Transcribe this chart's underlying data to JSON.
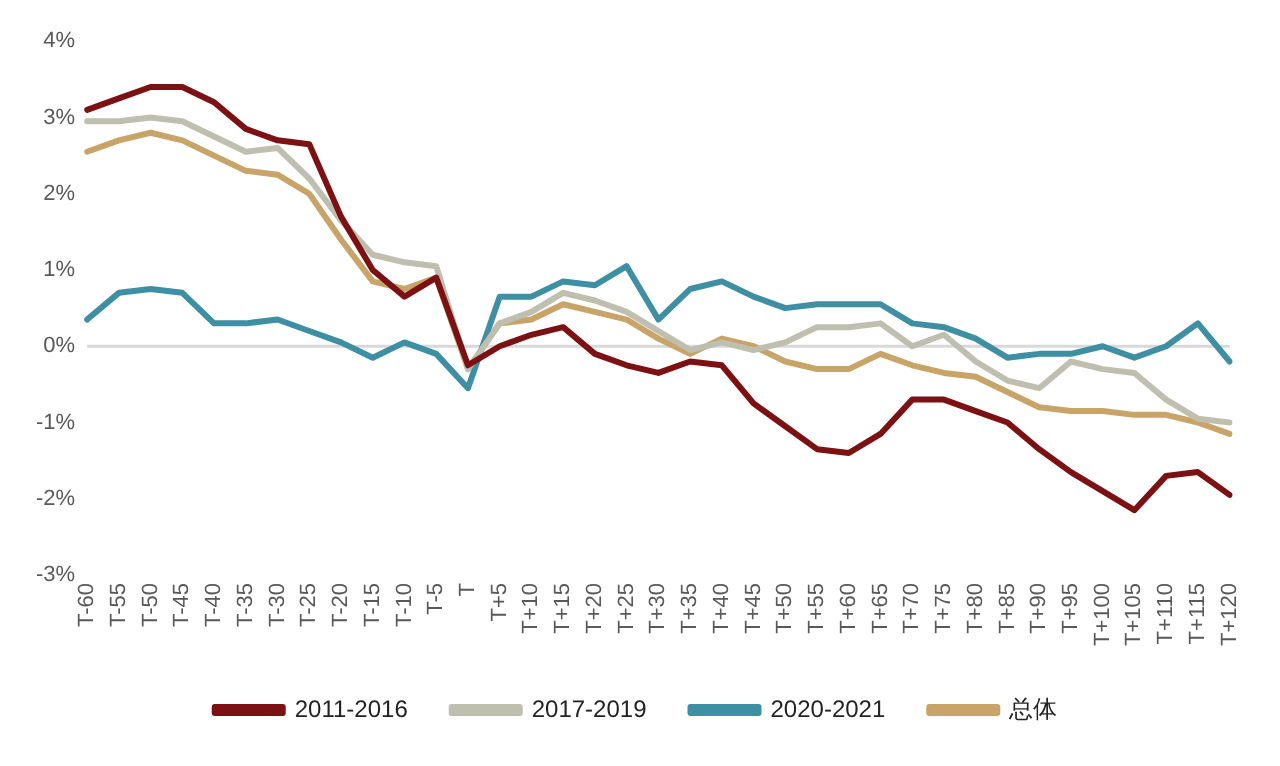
{
  "chart_data": {
    "type": "line",
    "categories": [
      "T-60",
      "T-55",
      "T-50",
      "T-45",
      "T-40",
      "T-35",
      "T-30",
      "T-25",
      "T-20",
      "T-15",
      "T-10",
      "T-5",
      "T",
      "T+5",
      "T+10",
      "T+15",
      "T+20",
      "T+25",
      "T+30",
      "T+35",
      "T+40",
      "T+45",
      "T+50",
      "T+55",
      "T+60",
      "T+65",
      "T+70",
      "T+75",
      "T+80",
      "T+85",
      "T+90",
      "T+95",
      "T+100",
      "T+105",
      "T+110",
      "T+115",
      "T+120"
    ],
    "series": [
      {
        "name": "2011-2016",
        "color": "#7b1113",
        "values": [
          3.1,
          3.25,
          3.4,
          3.4,
          3.2,
          2.85,
          2.7,
          2.65,
          1.7,
          1.0,
          0.65,
          0.9,
          -0.25,
          0.0,
          0.15,
          0.25,
          -0.1,
          -0.25,
          -0.35,
          -0.2,
          -0.25,
          -0.75,
          -1.05,
          -1.35,
          -1.4,
          -1.15,
          -0.7,
          -0.7,
          -0.85,
          -1.0,
          -1.35,
          -1.65,
          -1.9,
          -2.15,
          -1.7,
          -1.65,
          -1.95
        ]
      },
      {
        "name": "2017-2019",
        "color": "#bfbfb0",
        "values": [
          2.95,
          2.95,
          3.0,
          2.95,
          2.75,
          2.55,
          2.6,
          2.2,
          1.65,
          1.2,
          1.1,
          1.05,
          -0.3,
          0.3,
          0.45,
          0.7,
          0.6,
          0.45,
          0.2,
          -0.05,
          0.05,
          -0.05,
          0.05,
          0.25,
          0.25,
          0.3,
          0.0,
          0.15,
          -0.2,
          -0.45,
          -0.55,
          -0.2,
          -0.3,
          -0.35,
          -0.7,
          -0.95,
          -1.0
        ]
      },
      {
        "name": "2020-2021",
        "color": "#3e8fa3",
        "values": [
          0.35,
          0.7,
          0.75,
          0.7,
          0.3,
          0.3,
          0.35,
          0.2,
          0.05,
          -0.15,
          0.05,
          -0.1,
          -0.55,
          0.65,
          0.65,
          0.85,
          0.8,
          1.05,
          0.35,
          0.75,
          0.85,
          0.65,
          0.5,
          0.55,
          0.55,
          0.55,
          0.3,
          0.25,
          0.1,
          -0.15,
          -0.1,
          -0.1,
          0.0,
          -0.15,
          0.0,
          0.3,
          -0.2
        ]
      },
      {
        "name": "总体",
        "color": "#c8a468",
        "values": [
          2.55,
          2.7,
          2.8,
          2.7,
          2.5,
          2.3,
          2.25,
          2.0,
          1.4,
          0.85,
          0.75,
          0.9,
          -0.3,
          0.3,
          0.35,
          0.55,
          0.45,
          0.35,
          0.1,
          -0.1,
          0.1,
          0.0,
          -0.2,
          -0.3,
          -0.3,
          -0.1,
          -0.25,
          -0.35,
          -0.4,
          -0.6,
          -0.8,
          -0.85,
          -0.85,
          -0.9,
          -0.9,
          -1.0,
          -1.15
        ]
      }
    ],
    "ylim": [
      -3,
      4
    ],
    "yticks": [
      {
        "value": -3,
        "label": "-3%"
      },
      {
        "value": -2,
        "label": "-2%"
      },
      {
        "value": -1,
        "label": "-1%"
      },
      {
        "value": 0,
        "label": "0%"
      },
      {
        "value": 1,
        "label": "1%"
      },
      {
        "value": 2,
        "label": "2%"
      },
      {
        "value": 3,
        "label": "3%"
      },
      {
        "value": 4,
        "label": "4%"
      }
    ],
    "ref_lines": [
      {
        "axis": "y",
        "value": 0,
        "color": "#d9d9d9"
      }
    ],
    "legend": "bottom",
    "marker": "none",
    "line_style": "solid"
  }
}
